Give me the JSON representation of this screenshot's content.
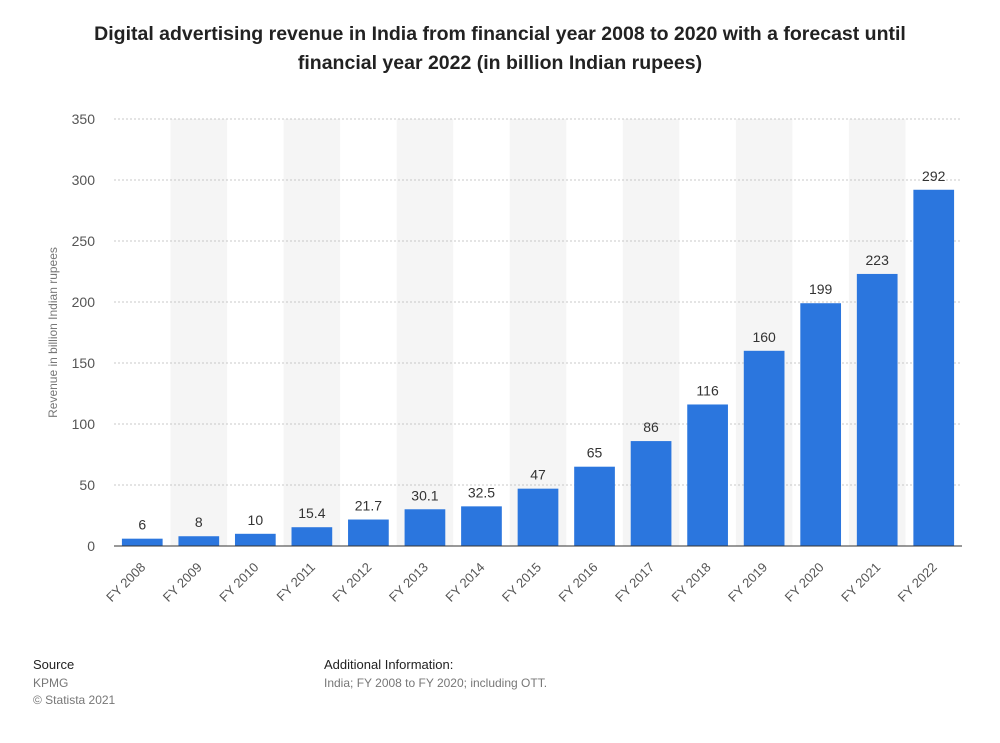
{
  "chart_title": "Digital advertising revenue in India from financial year 2008 to 2020 with a forecast until financial year 2022 (in billion Indian rupees)",
  "footer": {
    "source_heading": "Source",
    "source_name": "KPMG",
    "copyright": "© Statista 2021",
    "additional_heading": "Additional Information:",
    "additional_text": "India; FY 2008 to FY 2020; including OTT."
  },
  "colors": {
    "bar": "#2b76de",
    "grid": "#c8c8c8",
    "band": "#f5f5f5",
    "axis": "#333333"
  },
  "chart_data": {
    "type": "bar",
    "title": "Digital advertising revenue in India from financial year 2008 to 2020 with a forecast until financial year 2022 (in billion Indian rupees)",
    "xlabel": "",
    "ylabel": "Revenue in billion Indian rupees",
    "ylim": [
      0,
      350
    ],
    "yticks": [
      0,
      50,
      100,
      150,
      200,
      250,
      300,
      350
    ],
    "grid": true,
    "categories": [
      "FY 2008",
      "FY 2009",
      "FY 2010",
      "FY 2011",
      "FY 2012",
      "FY 2013",
      "FY 2014",
      "FY 2015",
      "FY 2016",
      "FY 2017",
      "FY 2018",
      "FY 2019",
      "FY 2020",
      "FY 2021",
      "FY 2022"
    ],
    "values": [
      6,
      8,
      10,
      15.4,
      21.7,
      30.1,
      32.5,
      47,
      65,
      86,
      116,
      160,
      199,
      223,
      292
    ],
    "value_labels": [
      "6",
      "8",
      "10",
      "15.4",
      "21.7",
      "30.1",
      "32.5",
      "47",
      "65",
      "86",
      "116",
      "160",
      "199",
      "223",
      "292"
    ]
  }
}
